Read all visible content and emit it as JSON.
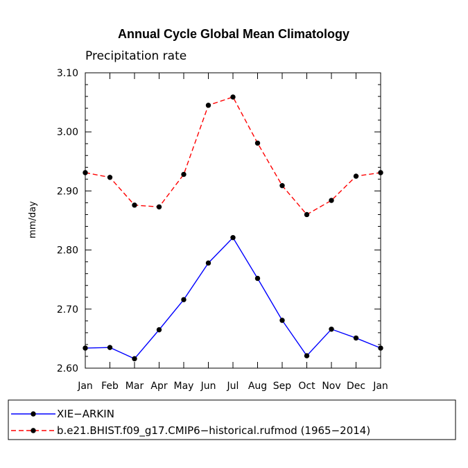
{
  "chart_data": {
    "type": "line",
    "title": "Annual Cycle Global Mean Climatology",
    "subtitle": "Precipitation rate",
    "xlabel": "",
    "ylabel": "mm/day",
    "categories": [
      "Jan",
      "Feb",
      "Mar",
      "Apr",
      "May",
      "Jun",
      "Jul",
      "Aug",
      "Sep",
      "Oct",
      "Nov",
      "Dec",
      "Jan"
    ],
    "ylim": [
      2.6,
      3.1
    ],
    "yticks": [
      "2.60",
      "2.70",
      "2.80",
      "2.90",
      "3.00",
      "3.10"
    ],
    "ytick_values": [
      2.6,
      2.7,
      2.8,
      2.9,
      3.0,
      3.1
    ],
    "legend_position": "bottom",
    "series": [
      {
        "name": "XIE−ARKIN",
        "color": "#0000ff",
        "dash": "solid",
        "values": [
          2.634,
          2.635,
          2.616,
          2.665,
          2.716,
          2.778,
          2.821,
          2.752,
          2.681,
          2.621,
          2.666,
          2.651,
          2.634
        ]
      },
      {
        "name": "b.e21.BHIST.f09_g17.CMIP6−historical.rufmod (1965−2014)",
        "color": "#ff0000",
        "dash": "dashed",
        "values": [
          2.931,
          2.923,
          2.876,
          2.873,
          2.928,
          3.045,
          3.059,
          2.981,
          2.909,
          2.86,
          2.884,
          2.925,
          2.931
        ]
      }
    ]
  }
}
